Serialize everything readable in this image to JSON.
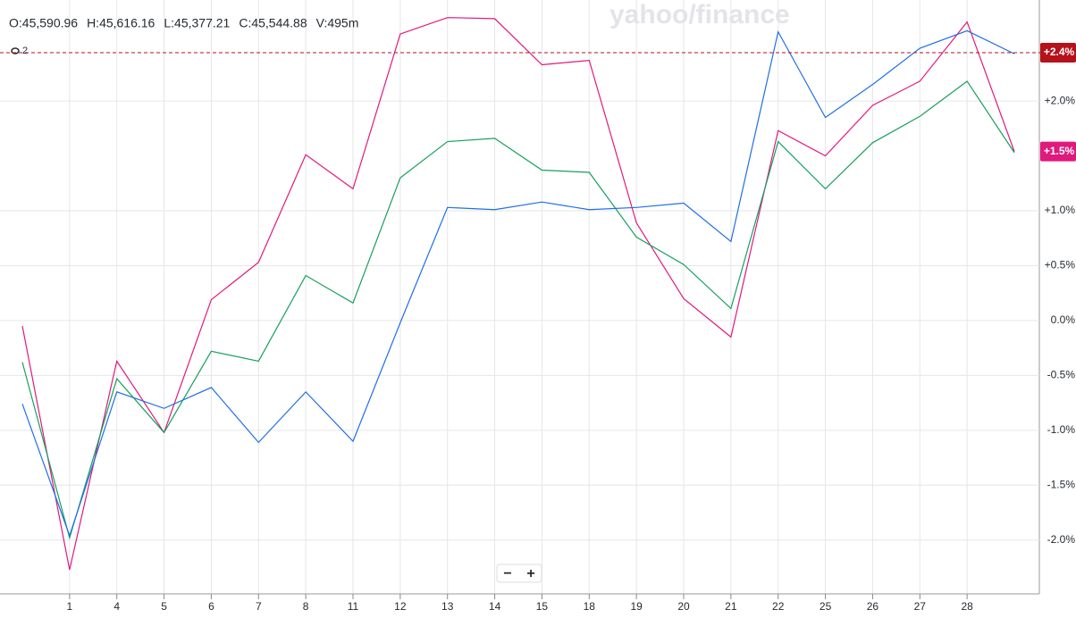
{
  "chart_data": {
    "type": "line",
    "info": [
      "O:45,590.96",
      "H:45,616.16",
      "L:45,377.21",
      "C:45,544.88",
      "V:495m"
    ],
    "indicator_count": 2,
    "watermark": "yahoo/finance",
    "zoom": [
      "−",
      "+"
    ],
    "categories": [
      null,
      "1",
      "4",
      "5",
      "6",
      "7",
      "8",
      "11",
      "12",
      "13",
      "14",
      "15",
      "18",
      "19",
      "20",
      "21",
      "22",
      "25",
      "26",
      "27",
      "28",
      null
    ],
    "series": [
      {
        "color": "#e0197d",
        "values": [
          -0.05,
          -2.27,
          -0.37,
          -1.02,
          0.19,
          0.53,
          1.51,
          1.2,
          2.61,
          2.76,
          2.75,
          2.33,
          2.37,
          0.89,
          0.2,
          -0.15,
          1.73,
          1.5,
          1.96,
          2.18,
          2.72,
          1.54
        ]
      },
      {
        "color": "#16a05d",
        "values": [
          -0.38,
          -1.98,
          -0.53,
          -1.02,
          -0.28,
          -0.37,
          0.41,
          0.16,
          1.3,
          1.63,
          1.66,
          1.37,
          1.35,
          0.76,
          0.51,
          0.11,
          1.63,
          1.2,
          1.62,
          1.86,
          2.18,
          1.53
        ]
      },
      {
        "color": "#1f6fe5",
        "values": [
          -0.76,
          -1.96,
          -0.65,
          -0.8,
          -0.61,
          -1.11,
          -0.65,
          -1.1,
          -0.02,
          1.03,
          1.01,
          1.08,
          1.01,
          1.03,
          1.07,
          0.72,
          2.63,
          1.85,
          2.15,
          2.48,
          2.64,
          2.43
        ]
      }
    ],
    "ylim": [
      -2.49,
      2.92
    ],
    "yticks": [
      {
        "value": 2,
        "label": "+2.0%"
      },
      {
        "value": 1,
        "label": "+1.0%"
      },
      {
        "value": 0.5,
        "label": "+0.5%"
      },
      {
        "value": 0,
        "label": "0.0%"
      },
      {
        "value": -0.5,
        "label": "-0.5%"
      },
      {
        "value": -1,
        "label": "-1.0%"
      },
      {
        "value": -1.5,
        "label": "-1.5%"
      },
      {
        "value": -2,
        "label": "-2.0%"
      }
    ],
    "grid": true,
    "badges": [
      {
        "value": 2.44,
        "label": "+2.4%",
        "color": "#b5121b",
        "dashed": true
      },
      {
        "value": 1.54,
        "label": "+1.5%",
        "color": "#e0197d",
        "dashed": false
      }
    ]
  }
}
